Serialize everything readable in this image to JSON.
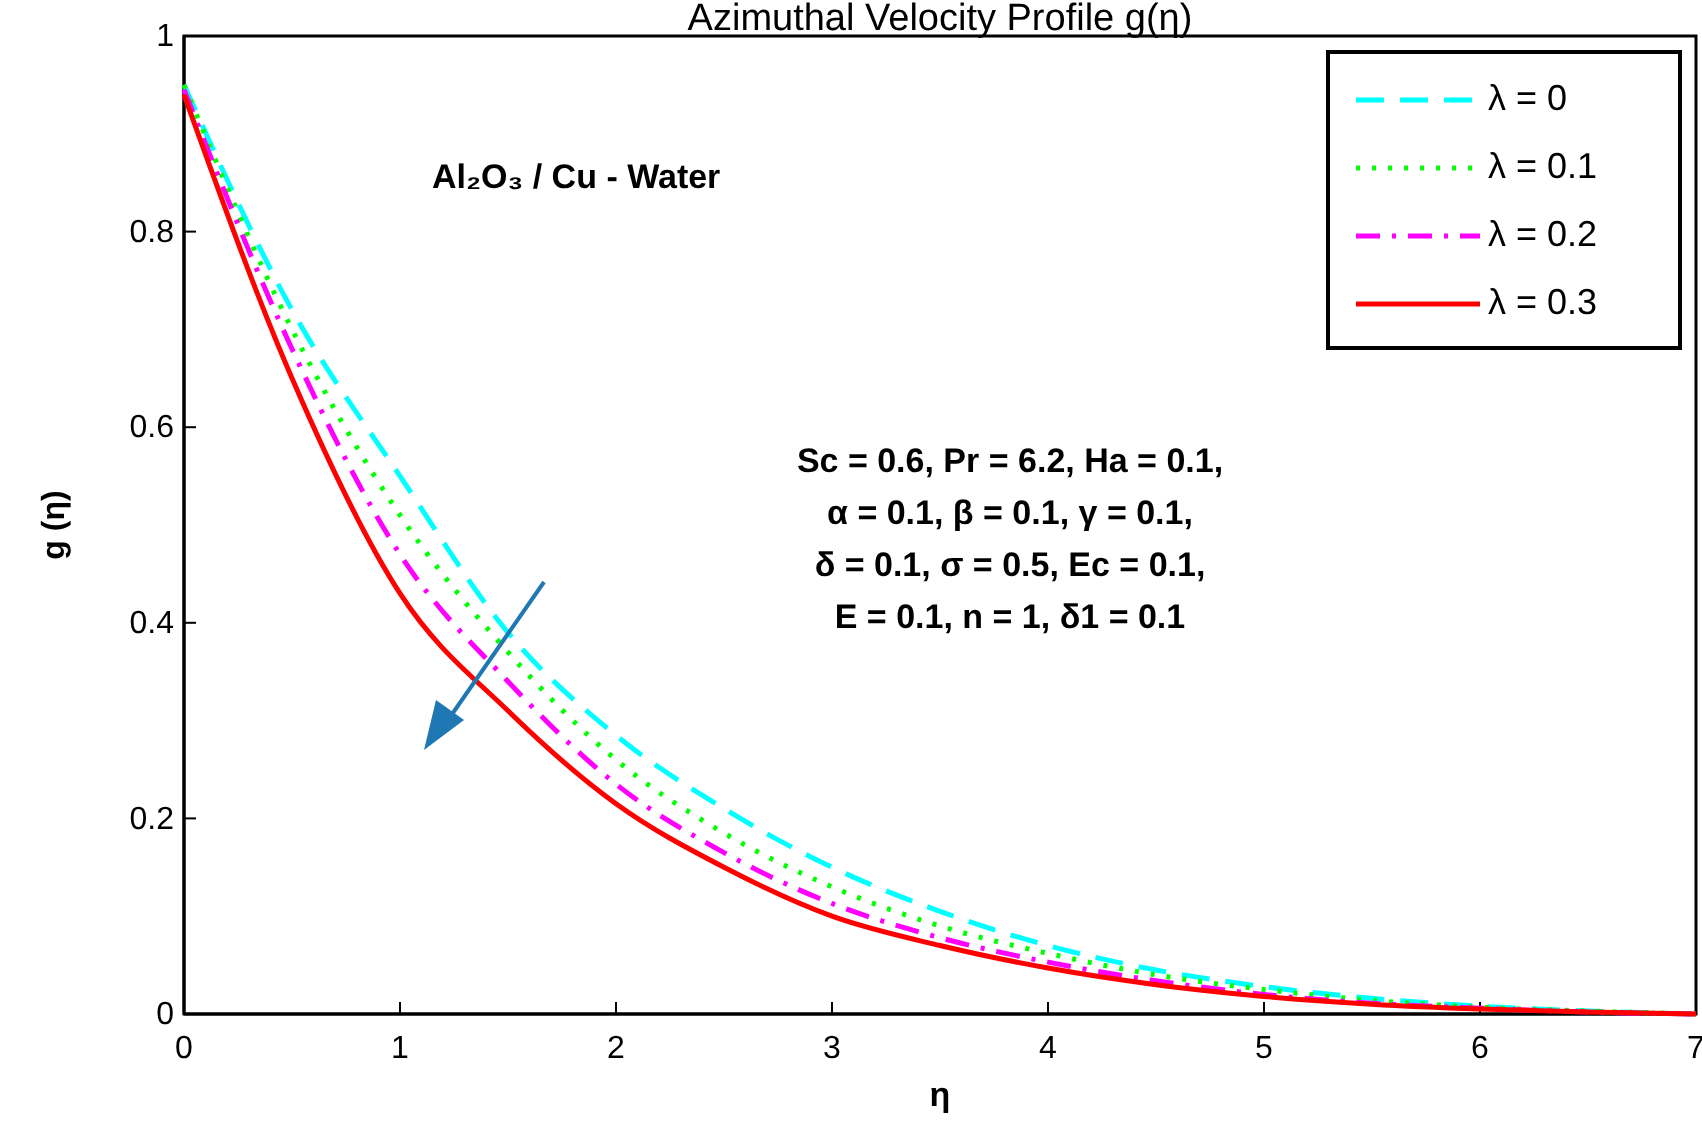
{
  "chart_data": {
    "type": "line",
    "title": "Azimuthal Velocity Profile g(η)",
    "xlabel": "η",
    "ylabel": "g (η)",
    "x": [
      0,
      0.5,
      1,
      1.5,
      2,
      2.5,
      3,
      3.5,
      4,
      4.5,
      5,
      5.5,
      6,
      6.5,
      7
    ],
    "series": [
      {
        "name": "λ = 0",
        "color": "#00ffff",
        "line_style": "dashed",
        "values": [
          0.95,
          0.72,
          0.55,
          0.39,
          0.285,
          0.21,
          0.15,
          0.105,
          0.07,
          0.045,
          0.028,
          0.016,
          0.008,
          0.003,
          0
        ]
      },
      {
        "name": "λ = 0.1",
        "color": "#00ff00",
        "line_style": "dotted",
        "values": [
          0.95,
          0.7,
          0.51,
          0.37,
          0.26,
          0.185,
          0.13,
          0.09,
          0.062,
          0.04,
          0.025,
          0.014,
          0.007,
          0.003,
          0
        ]
      },
      {
        "name": "λ = 0.2",
        "color": "#ff00ff",
        "line_style": "dashdot",
        "values": [
          0.945,
          0.68,
          0.47,
          0.34,
          0.235,
          0.165,
          0.113,
          0.078,
          0.053,
          0.034,
          0.02,
          0.011,
          0.006,
          0.002,
          0
        ]
      },
      {
        "name": "λ = 0.3",
        "color": "#ff0000",
        "line_style": "solid",
        "values": [
          0.94,
          0.65,
          0.43,
          0.31,
          0.215,
          0.15,
          0.1,
          0.07,
          0.047,
          0.03,
          0.018,
          0.01,
          0.005,
          0.002,
          0
        ]
      }
    ],
    "xlim": [
      0,
      7
    ],
    "xticks": [
      0,
      1,
      2,
      3,
      4,
      5,
      6,
      7
    ],
    "ylim": [
      0,
      1
    ],
    "yticks": [
      0,
      0.2,
      0.4,
      0.6,
      0.8,
      1
    ],
    "grid": false,
    "legend": "top right",
    "marker": "none",
    "annotations": [
      "Al₂O₃ / Cu - Water",
      "Sc = 0.6, Pr = 6.2, Ha = 0.1,\nα = 0.1, β = 0.1, γ = 0.1,\nδ = 0.1, σ = 0.5, Ec = 0.1,\nE = 0.1, n = 1, δ1 = 0.1"
    ]
  }
}
